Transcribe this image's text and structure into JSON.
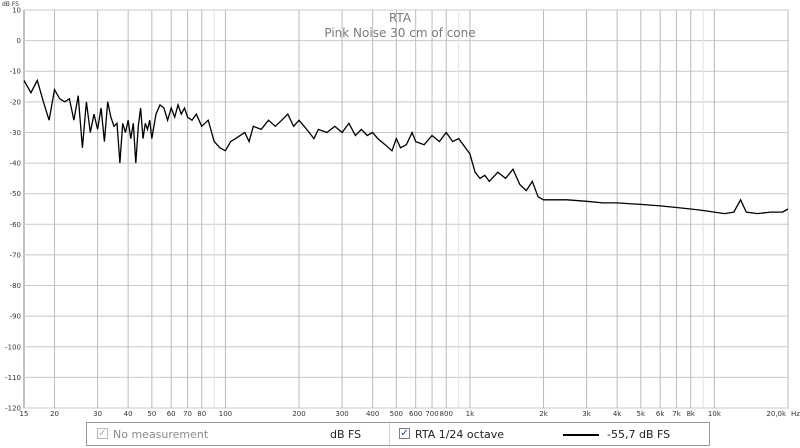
{
  "chart_data": {
    "type": "line",
    "title": "RTA",
    "subtitle": "Pink Noise 30 cm of cone",
    "ylabel": "dB FS",
    "xlabel": "Hz",
    "x_scale": "log",
    "xlim": [
      15,
      20000
    ],
    "ylim": [
      -120,
      10
    ],
    "grid": true,
    "y_ticks": [
      10,
      0,
      -10,
      -20,
      -30,
      -40,
      -50,
      -60,
      -70,
      -80,
      -90,
      -100,
      -110,
      -120
    ],
    "x_ticks": [
      {
        "value": 15,
        "label": "15"
      },
      {
        "value": 20,
        "label": "20"
      },
      {
        "value": 30,
        "label": "30"
      },
      {
        "value": 40,
        "label": "40"
      },
      {
        "value": 50,
        "label": "50"
      },
      {
        "value": 60,
        "label": "60"
      },
      {
        "value": 70,
        "label": "70"
      },
      {
        "value": 80,
        "label": "80"
      },
      {
        "value": 100,
        "label": "100"
      },
      {
        "value": 200,
        "label": "200"
      },
      {
        "value": 300,
        "label": "300"
      },
      {
        "value": 400,
        "label": "400"
      },
      {
        "value": 500,
        "label": "500"
      },
      {
        "value": 600,
        "label": "600"
      },
      {
        "value": 700,
        "label": "700"
      },
      {
        "value": 800,
        "label": "800"
      },
      {
        "value": 1000,
        "label": "1k"
      },
      {
        "value": 2000,
        "label": "2k"
      },
      {
        "value": 3000,
        "label": "3k"
      },
      {
        "value": 4000,
        "label": "4k"
      },
      {
        "value": 5000,
        "label": "5k"
      },
      {
        "value": 6000,
        "label": "6k"
      },
      {
        "value": 7000,
        "label": "7k"
      },
      {
        "value": 8000,
        "label": "8k"
      },
      {
        "value": 10000,
        "label": "10k"
      },
      {
        "value": 20000,
        "label": "20,0k"
      }
    ],
    "series": [
      {
        "color": "#000000",
        "points": [
          [
            15,
            -13
          ],
          [
            16,
            -17
          ],
          [
            17,
            -13
          ],
          [
            18,
            -20
          ],
          [
            19,
            -26
          ],
          [
            20,
            -16
          ],
          [
            21,
            -19
          ],
          [
            22,
            -20
          ],
          [
            23,
            -19
          ],
          [
            24,
            -26
          ],
          [
            25,
            -18
          ],
          [
            26,
            -35
          ],
          [
            27,
            -20
          ],
          [
            28,
            -30
          ],
          [
            29,
            -24
          ],
          [
            30,
            -29
          ],
          [
            31,
            -22
          ],
          [
            32,
            -33
          ],
          [
            33,
            -20
          ],
          [
            34,
            -25
          ],
          [
            35,
            -28
          ],
          [
            36,
            -27
          ],
          [
            37,
            -40
          ],
          [
            38,
            -27
          ],
          [
            39,
            -30
          ],
          [
            40,
            -26
          ],
          [
            41,
            -32
          ],
          [
            42,
            -27
          ],
          [
            43,
            -40
          ],
          [
            44,
            -28
          ],
          [
            45,
            -22
          ],
          [
            46,
            -32
          ],
          [
            47,
            -27
          ],
          [
            48,
            -29
          ],
          [
            49,
            -26
          ],
          [
            50,
            -32
          ],
          [
            52,
            -24
          ],
          [
            54,
            -21
          ],
          [
            56,
            -22
          ],
          [
            58,
            -26
          ],
          [
            60,
            -22
          ],
          [
            62,
            -25
          ],
          [
            64,
            -21
          ],
          [
            66,
            -24
          ],
          [
            68,
            -22
          ],
          [
            70,
            -25
          ],
          [
            73,
            -26
          ],
          [
            76,
            -24
          ],
          [
            80,
            -28
          ],
          [
            85,
            -26
          ],
          [
            90,
            -33
          ],
          [
            95,
            -35
          ],
          [
            100,
            -36
          ],
          [
            105,
            -33
          ],
          [
            110,
            -32
          ],
          [
            120,
            -30
          ],
          [
            125,
            -33
          ],
          [
            130,
            -28
          ],
          [
            140,
            -29
          ],
          [
            150,
            -26
          ],
          [
            160,
            -28
          ],
          [
            170,
            -26
          ],
          [
            180,
            -24
          ],
          [
            190,
            -28
          ],
          [
            200,
            -26
          ],
          [
            210,
            -28
          ],
          [
            220,
            -30
          ],
          [
            230,
            -32
          ],
          [
            240,
            -29
          ],
          [
            260,
            -30
          ],
          [
            280,
            -28
          ],
          [
            300,
            -30
          ],
          [
            320,
            -27
          ],
          [
            340,
            -31
          ],
          [
            360,
            -29
          ],
          [
            380,
            -31
          ],
          [
            400,
            -30
          ],
          [
            420,
            -32
          ],
          [
            450,
            -34
          ],
          [
            480,
            -36
          ],
          [
            500,
            -32
          ],
          [
            520,
            -35
          ],
          [
            550,
            -34
          ],
          [
            580,
            -30
          ],
          [
            600,
            -33
          ],
          [
            650,
            -34
          ],
          [
            700,
            -31
          ],
          [
            750,
            -33
          ],
          [
            800,
            -30
          ],
          [
            850,
            -33
          ],
          [
            900,
            -32
          ],
          [
            1000,
            -37
          ],
          [
            1050,
            -43
          ],
          [
            1100,
            -45
          ],
          [
            1150,
            -44
          ],
          [
            1200,
            -46
          ],
          [
            1300,
            -43
          ],
          [
            1400,
            -45
          ],
          [
            1500,
            -42
          ],
          [
            1600,
            -47
          ],
          [
            1700,
            -49
          ],
          [
            1800,
            -46
          ],
          [
            1900,
            -51
          ],
          [
            2000,
            -52
          ],
          [
            2200,
            -52
          ],
          [
            2500,
            -52
          ],
          [
            3000,
            -52.5
          ],
          [
            3500,
            -53
          ],
          [
            4000,
            -53
          ],
          [
            5000,
            -53.5
          ],
          [
            6000,
            -54
          ],
          [
            7000,
            -54.5
          ],
          [
            8000,
            -55
          ],
          [
            9000,
            -55.5
          ],
          [
            10000,
            -56
          ],
          [
            11000,
            -56.5
          ],
          [
            12000,
            -56
          ],
          [
            12800,
            -52
          ],
          [
            13500,
            -56
          ],
          [
            15000,
            -56.5
          ],
          [
            17000,
            -56
          ],
          [
            19000,
            -56
          ],
          [
            20000,
            -55
          ]
        ]
      }
    ]
  },
  "legend": {
    "no_measurement": "No measurement",
    "unit": "dB FS",
    "rta_label": "RTA 1/24 octave",
    "readout": "-55,7 dB FS",
    "no_measurement_checked": true,
    "rta_checked": true
  }
}
